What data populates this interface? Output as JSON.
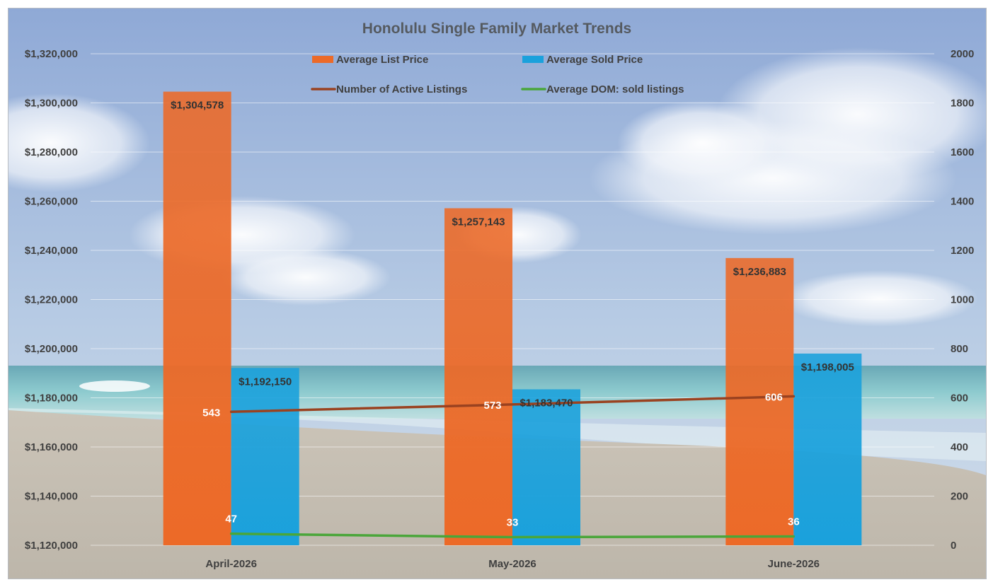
{
  "chart_data": {
    "type": "bar",
    "title": "Honolulu Single Family Market Trends",
    "categories": [
      "April-2026",
      "May-2026",
      "June-2026"
    ],
    "series": [
      {
        "name": "Average List Price",
        "kind": "bar",
        "axis": "left",
        "color": "#ec6a28",
        "values": [
          1304578,
          1257143,
          1236883
        ],
        "labels": [
          "$1,304,578",
          "$1,257,143",
          "$1,236,883"
        ]
      },
      {
        "name": "Average Sold Price",
        "kind": "bar",
        "axis": "left",
        "color": "#1aa1dc",
        "values": [
          1192150,
          1183470,
          1198005
        ],
        "labels": [
          "$1,192,150",
          "$1,183,470",
          "$1,198,005"
        ]
      },
      {
        "name": "Number of Active Listings",
        "kind": "line",
        "axis": "right",
        "color": "#9a4220",
        "values": [
          543,
          573,
          606
        ],
        "labels": [
          "543",
          "573",
          "606"
        ]
      },
      {
        "name": "Average DOM: sold listings",
        "kind": "line",
        "axis": "right",
        "color": "#4aa63a",
        "values": [
          47,
          33,
          36
        ],
        "labels": [
          "47",
          "33",
          "36"
        ]
      }
    ],
    "y_left": {
      "min": 1120000,
      "max": 1320000,
      "step": 20000,
      "tick_labels": [
        "$1,120,000",
        "$1,140,000",
        "$1,160,000",
        "$1,180,000",
        "$1,200,000",
        "$1,220,000",
        "$1,240,000",
        "$1,260,000",
        "$1,280,000",
        "$1,300,000",
        "$1,320,000"
      ]
    },
    "y_right": {
      "min": 0,
      "max": 2000,
      "step": 200,
      "tick_labels": [
        "0",
        "200",
        "400",
        "600",
        "800",
        "1000",
        "1200",
        "1400",
        "1600",
        "1800",
        "2000"
      ]
    },
    "grid": true,
    "legend_position": "top"
  }
}
